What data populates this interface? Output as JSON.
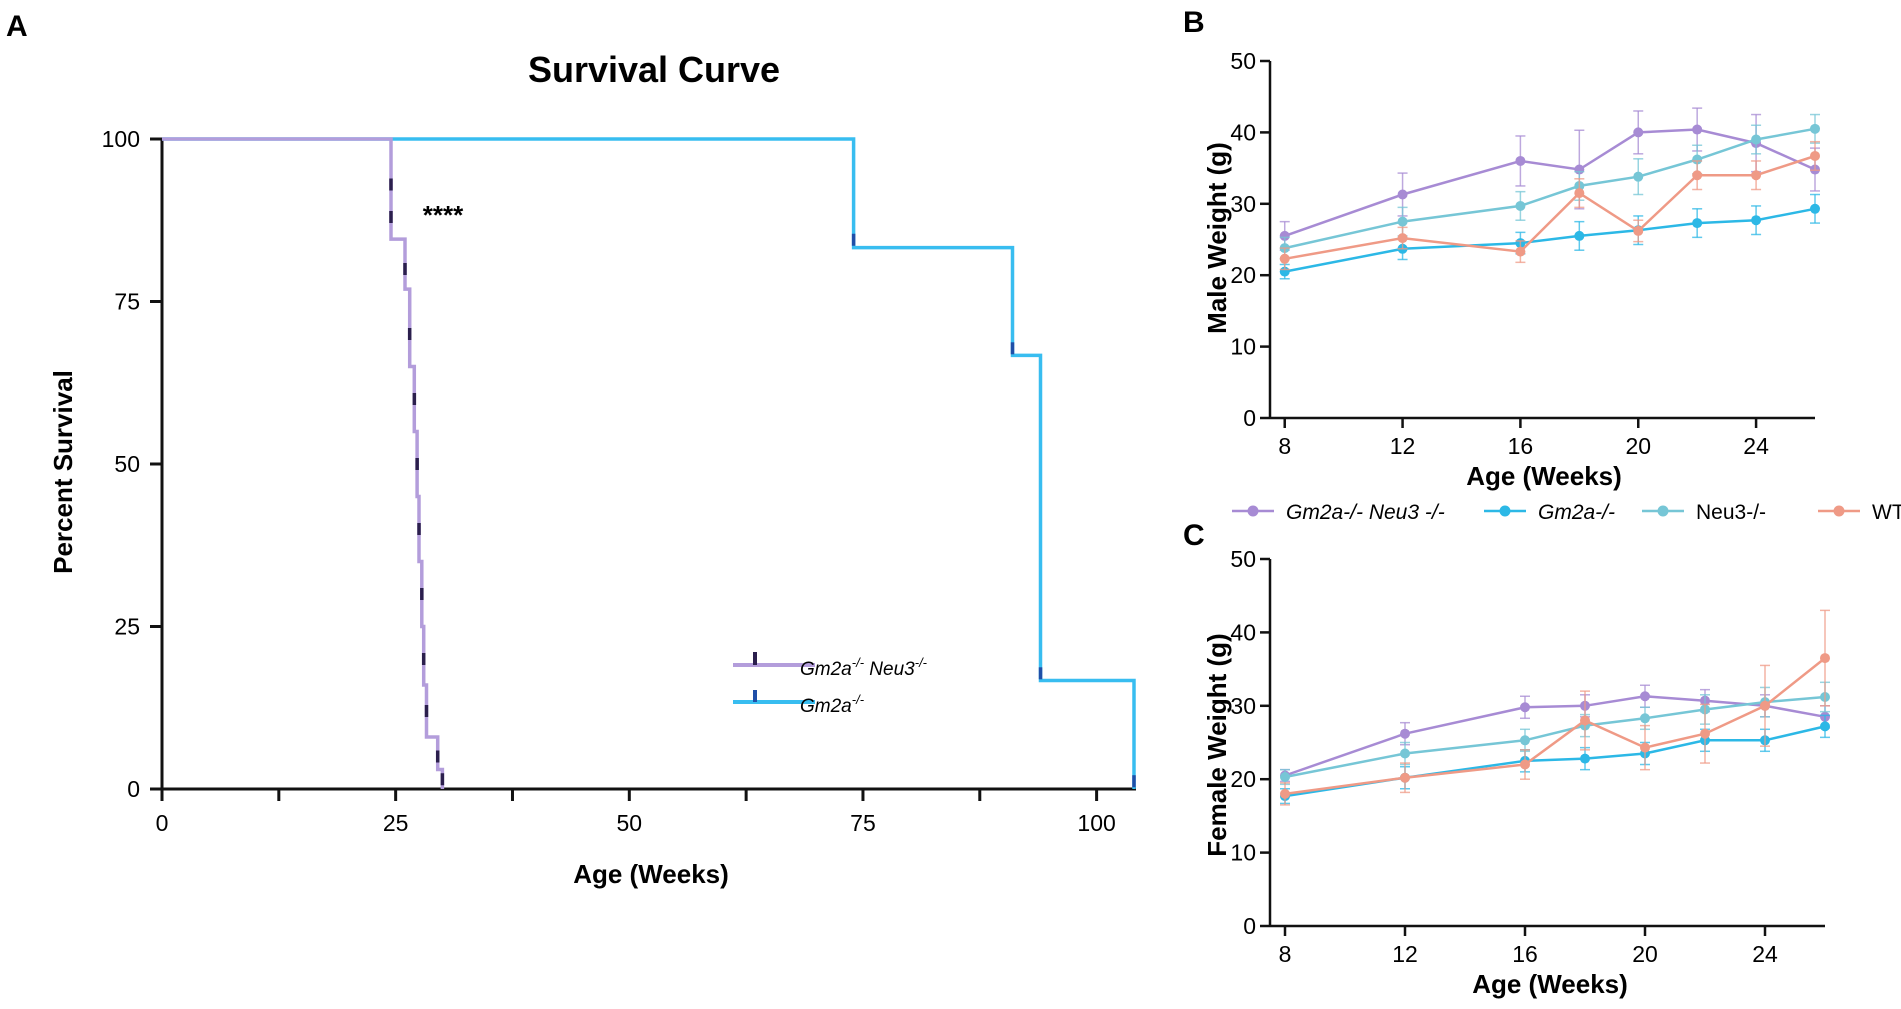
{
  "panel_a": {
    "letter": "A",
    "chart_data": {
      "type": "line",
      "subtype": "kaplan-meier",
      "title": "Survival Curve",
      "xlabel": "Age (Weeks)",
      "ylabel": "Percent Survival",
      "xlim": [
        0,
        104
      ],
      "ylim": [
        0,
        100
      ],
      "xticks": [
        0,
        25,
        50,
        75,
        100
      ],
      "xticks_minor": [
        12.5,
        37.5,
        62.5,
        87.5
      ],
      "yticks": [
        0,
        25,
        50,
        75,
        100
      ],
      "annotation": "****",
      "series": [
        {
          "name": "Gm2a-/- Neu3-/-",
          "legend_base": "Gm2a",
          "legend_sup1": "-/-",
          "legend_mid": " Neu3",
          "legend_sup2": "-/-",
          "color": "#b39ddb",
          "censor_color": "#2b1f4d",
          "steps": [
            [
              0,
              100
            ],
            [
              24.5,
              100
            ],
            [
              24.5,
              84.6
            ],
            [
              26,
              84.6
            ],
            [
              26,
              76.9
            ],
            [
              26.5,
              76.9
            ],
            [
              26.5,
              65
            ],
            [
              27,
              65
            ],
            [
              27,
              55
            ],
            [
              27.3,
              55
            ],
            [
              27.3,
              45
            ],
            [
              27.5,
              45
            ],
            [
              27.5,
              35
            ],
            [
              27.8,
              35
            ],
            [
              27.8,
              25
            ],
            [
              28,
              25
            ],
            [
              28,
              16
            ],
            [
              28.3,
              16
            ],
            [
              28.3,
              8
            ],
            [
              29.5,
              8
            ],
            [
              29.5,
              3
            ],
            [
              30,
              3
            ],
            [
              30,
              0
            ]
          ],
          "censor_points": [
            [
              24.5,
              93
            ],
            [
              24.5,
              88
            ],
            [
              26,
              80
            ],
            [
              26.5,
              70
            ],
            [
              27,
              60
            ],
            [
              27.3,
              50
            ],
            [
              27.5,
              40
            ],
            [
              27.8,
              30
            ],
            [
              28,
              20
            ],
            [
              28.3,
              12
            ],
            [
              29.5,
              5
            ],
            [
              30,
              1.5
            ]
          ]
        },
        {
          "name": "Gm2a-/-",
          "legend_base": "Gm2a",
          "legend_sup1": "-/-",
          "color": "#38bdf0",
          "censor_color": "#1f4fa8",
          "steps": [
            [
              0,
              100
            ],
            [
              74,
              100
            ],
            [
              74,
              83.3
            ],
            [
              91,
              83.3
            ],
            [
              91,
              66.7
            ],
            [
              94,
              66.7
            ],
            [
              94,
              16.7
            ],
            [
              104,
              16.7
            ],
            [
              104,
              0
            ]
          ],
          "censor_points": [
            [
              74,
              84.5
            ],
            [
              91,
              67.8
            ],
            [
              94,
              17.8
            ],
            [
              104,
              1.2
            ]
          ]
        }
      ]
    }
  },
  "panel_b": {
    "letter": "B",
    "chart_data": {
      "type": "line",
      "title": "",
      "xlabel": "Age (Weeks)",
      "ylabel": "Male Weight (g)",
      "xlim": [
        7.5,
        26
      ],
      "ylim": [
        0,
        50
      ],
      "xticks": [
        8,
        12,
        16,
        20,
        24
      ],
      "yticks": [
        0,
        10,
        20,
        30,
        40,
        50
      ],
      "series": [
        {
          "name": "Gm2a-/- Neu3 -/-",
          "color": "#a78bd4",
          "x": [
            8,
            12,
            16,
            18,
            20,
            22,
            24,
            26
          ],
          "y": [
            25.5,
            31.3,
            36,
            34.8,
            40,
            40.4,
            38.5,
            34.8
          ],
          "err": [
            2,
            3,
            3.5,
            5.5,
            3,
            3,
            4,
            3
          ]
        },
        {
          "name": "Gm2a-/-",
          "color": "#2cb8e6",
          "x": [
            8,
            12,
            16,
            18,
            20,
            22,
            24,
            26
          ],
          "y": [
            20.5,
            23.7,
            24.5,
            25.5,
            26.3,
            27.3,
            27.7,
            29.3
          ],
          "err": [
            1,
            1.5,
            1.5,
            2,
            2,
            2,
            2,
            2
          ]
        },
        {
          "name": "Neu3-/-",
          "color": "#76c6d6",
          "x": [
            8,
            12,
            16,
            18,
            20,
            22,
            24,
            26
          ],
          "y": [
            23.8,
            27.5,
            29.7,
            32.5,
            33.8,
            36.2,
            39,
            40.5
          ],
          "err": [
            1.5,
            2,
            2,
            2,
            2.5,
            2,
            2,
            2
          ]
        },
        {
          "name": "WT",
          "color": "#ef9a86",
          "x": [
            8,
            12,
            16,
            18,
            20,
            22,
            24,
            26
          ],
          "y": [
            22.3,
            25.2,
            23.3,
            31.5,
            26.2,
            34,
            34,
            36.7
          ],
          "err": [
            1.5,
            1.5,
            1.5,
            2,
            1.5,
            2,
            2,
            2
          ]
        }
      ]
    }
  },
  "legend_bc": {
    "items": [
      {
        "label": "Gm2a-/- Neu3 -/-",
        "color": "#a78bd4",
        "italic": true
      },
      {
        "label": "Gm2a-/-",
        "color": "#2cb8e6",
        "italic": true
      },
      {
        "label": "Neu3-/-",
        "color": "#76c6d6",
        "italic": false
      },
      {
        "label": "WT",
        "color": "#ef9a86",
        "italic": false
      }
    ]
  },
  "panel_c": {
    "letter": "C",
    "chart_data": {
      "type": "line",
      "title": "",
      "xlabel": "Age (Weeks)",
      "ylabel": "Female Weight (g)",
      "xlim": [
        7.5,
        26
      ],
      "ylim": [
        0,
        50
      ],
      "xticks": [
        8,
        12,
        16,
        20,
        24
      ],
      "yticks": [
        0,
        10,
        20,
        30,
        40,
        50
      ],
      "series": [
        {
          "name": "Gm2a-/- Neu3 -/-",
          "color": "#a78bd4",
          "x": [
            8,
            12,
            16,
            18,
            20,
            22,
            24,
            26
          ],
          "y": [
            20.5,
            26.2,
            29.8,
            30,
            31.3,
            30.7,
            30,
            28.5
          ],
          "err": [
            0.8,
            1.5,
            1.5,
            1.5,
            1.5,
            1.5,
            1.5,
            1.5
          ]
        },
        {
          "name": "Gm2a-/-",
          "color": "#2cb8e6",
          "x": [
            8,
            12,
            16,
            18,
            20,
            22,
            24,
            26
          ],
          "y": [
            17.7,
            20.2,
            22.5,
            22.8,
            23.5,
            25.3,
            25.3,
            27.2
          ],
          "err": [
            1,
            1.5,
            1.5,
            1.5,
            1.5,
            1.5,
            1.5,
            1.5
          ]
        },
        {
          "name": "Neu3-/-",
          "color": "#76c6d6",
          "x": [
            8,
            12,
            16,
            18,
            20,
            22,
            24,
            26
          ],
          "y": [
            20.3,
            23.5,
            25.3,
            27.3,
            28.3,
            29.5,
            30.5,
            31.2
          ],
          "err": [
            1,
            1.5,
            1.5,
            1.5,
            1.5,
            2,
            2,
            2
          ]
        },
        {
          "name": "WT",
          "color": "#ef9a86",
          "x": [
            8,
            12,
            16,
            18,
            20,
            22,
            24,
            26
          ],
          "y": [
            18,
            20.2,
            22,
            28,
            24.3,
            26.2,
            30,
            36.5
          ],
          "err": [
            1.5,
            2,
            2,
            4,
            3,
            4,
            5.5,
            6.5
          ]
        }
      ]
    }
  }
}
